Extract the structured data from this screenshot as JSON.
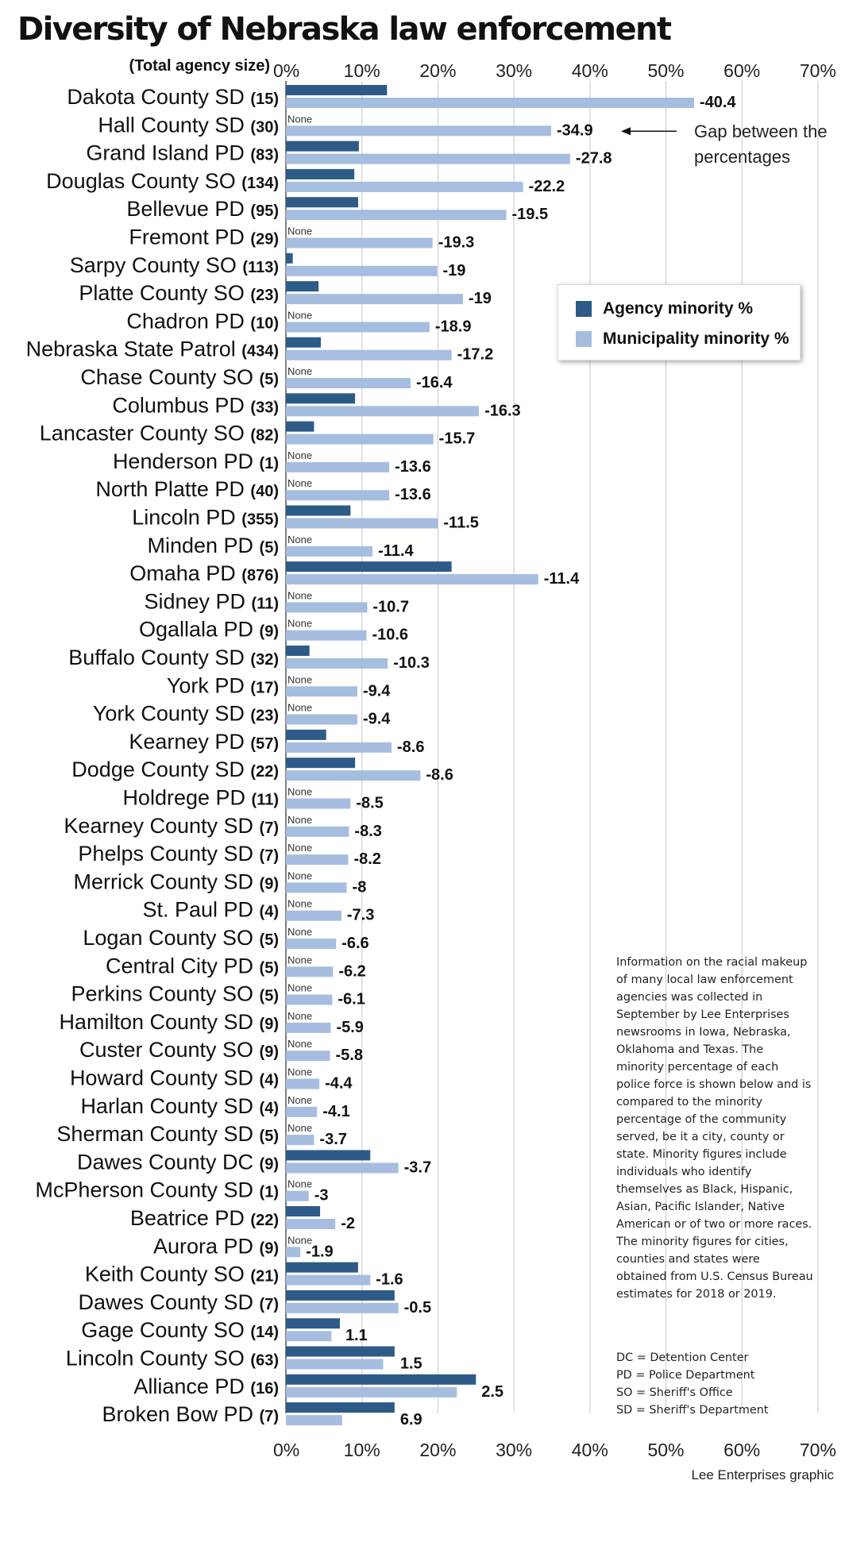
{
  "title": "Diversity of Nebraska law enforcement",
  "size_header": "(Total agency size)",
  "legend": {
    "agency": "Agency minority %",
    "municipality": "Municipality minority %"
  },
  "annotation": "Gap between the percentages",
  "none_label": "None",
  "notes": "Information on the racial makeup of many local law enforcement agencies was collected in September by Lee Enterprises newsrooms in Iowa, Nebraska, Oklahoma and Texas. The minority percentage of each police force is shown below and is compared to the minority percentage of the community served, be it a city, county or state. Minority figures include individuals who identify themselves as Black, Hispanic, Asian, Pacific Islander, Native American or of two or more races. The minority figures for cities, counties and states were obtained from U.S. Census Bureau estimates for 2018 or 2019.",
  "abbreviations": [
    "DC = Detention Center",
    "PD = Police Department",
    "SO = Sheriff's Office",
    "SD = Sheriff's Department"
  ],
  "credit": "Lee Enterprises graphic",
  "colors": {
    "agency": "#2e5a87",
    "municipality": "#a6bde0",
    "grid": "#d0d0d0"
  },
  "chart_data": {
    "type": "bar",
    "orientation": "horizontal",
    "title": "Diversity of Nebraska law enforcement",
    "xlim": [
      0,
      70
    ],
    "xticks": [
      "0%",
      "10%",
      "20%",
      "30%",
      "40%",
      "50%",
      "60%",
      "70%"
    ],
    "grid": true,
    "legend_position": "right",
    "categories": [
      {
        "name": "Dakota County SD",
        "size": "(15)",
        "agency": 13.3,
        "municipality": 53.7,
        "gap": "-40.4"
      },
      {
        "name": "Hall County SD",
        "size": "(30)",
        "agency": 0,
        "municipality": 34.9,
        "gap": "-34.9"
      },
      {
        "name": "Grand Island PD",
        "size": "(83)",
        "agency": 9.6,
        "municipality": 37.4,
        "gap": "-27.8"
      },
      {
        "name": "Douglas County SO",
        "size": "(134)",
        "agency": 9.0,
        "municipality": 31.2,
        "gap": "-22.2"
      },
      {
        "name": "Bellevue PD",
        "size": "(95)",
        "agency": 9.5,
        "municipality": 29.0,
        "gap": "-19.5"
      },
      {
        "name": "Fremont PD",
        "size": "(29)",
        "agency": 0,
        "municipality": 19.3,
        "gap": "-19.3"
      },
      {
        "name": "Sarpy County SO",
        "size": "(113)",
        "agency": 0.9,
        "municipality": 19.9,
        "gap": "-19"
      },
      {
        "name": "Platte County SO",
        "size": "(23)",
        "agency": 4.3,
        "municipality": 23.3,
        "gap": "-19"
      },
      {
        "name": "Chadron PD",
        "size": "(10)",
        "agency": 0,
        "municipality": 18.9,
        "gap": "-18.9"
      },
      {
        "name": "Nebraska State Patrol",
        "size": "(434)",
        "agency": 4.6,
        "municipality": 21.8,
        "gap": "-17.2"
      },
      {
        "name": "Chase County SO",
        "size": "(5)",
        "agency": 0,
        "municipality": 16.4,
        "gap": "-16.4"
      },
      {
        "name": "Columbus PD",
        "size": "(33)",
        "agency": 9.1,
        "municipality": 25.4,
        "gap": "-16.3"
      },
      {
        "name": "Lancaster County SO",
        "size": "(82)",
        "agency": 3.7,
        "municipality": 19.4,
        "gap": "-15.7"
      },
      {
        "name": "Henderson PD",
        "size": "(1)",
        "agency": 0,
        "municipality": 13.6,
        "gap": "-13.6"
      },
      {
        "name": "North Platte PD",
        "size": "(40)",
        "agency": 0,
        "municipality": 13.6,
        "gap": "-13.6"
      },
      {
        "name": "Lincoln PD",
        "size": "(355)",
        "agency": 8.5,
        "municipality": 20.0,
        "gap": "-11.5"
      },
      {
        "name": "Minden PD",
        "size": "(5)",
        "agency": 0,
        "municipality": 11.4,
        "gap": "-11.4"
      },
      {
        "name": "Omaha PD",
        "size": "(876)",
        "agency": 21.8,
        "municipality": 33.2,
        "gap": "-11.4"
      },
      {
        "name": "Sidney PD",
        "size": "(11)",
        "agency": 0,
        "municipality": 10.7,
        "gap": "-10.7"
      },
      {
        "name": "Ogallala PD",
        "size": "(9)",
        "agency": 0,
        "municipality": 10.6,
        "gap": "-10.6"
      },
      {
        "name": "Buffalo County SD",
        "size": "(32)",
        "agency": 3.1,
        "municipality": 13.4,
        "gap": "-10.3"
      },
      {
        "name": "York PD",
        "size": "(17)",
        "agency": 0,
        "municipality": 9.4,
        "gap": "-9.4"
      },
      {
        "name": "York County SD",
        "size": "(23)",
        "agency": 0,
        "municipality": 9.4,
        "gap": "-9.4"
      },
      {
        "name": "Kearney PD",
        "size": "(57)",
        "agency": 5.3,
        "municipality": 13.9,
        "gap": "-8.6"
      },
      {
        "name": "Dodge County SD",
        "size": "(22)",
        "agency": 9.1,
        "municipality": 17.7,
        "gap": "-8.6"
      },
      {
        "name": "Holdrege PD",
        "size": "(11)",
        "agency": 0,
        "municipality": 8.5,
        "gap": "-8.5"
      },
      {
        "name": "Kearney County SD",
        "size": "(7)",
        "agency": 0,
        "municipality": 8.3,
        "gap": "-8.3"
      },
      {
        "name": "Phelps County SD",
        "size": "(7)",
        "agency": 0,
        "municipality": 8.2,
        "gap": "-8.2"
      },
      {
        "name": "Merrick County SD",
        "size": "(9)",
        "agency": 0,
        "municipality": 8.0,
        "gap": "-8"
      },
      {
        "name": "St. Paul PD",
        "size": "(4)",
        "agency": 0,
        "municipality": 7.3,
        "gap": "-7.3"
      },
      {
        "name": "Logan County SO",
        "size": "(5)",
        "agency": 0,
        "municipality": 6.6,
        "gap": "-6.6"
      },
      {
        "name": "Central City PD",
        "size": "(5)",
        "agency": 0,
        "municipality": 6.2,
        "gap": "-6.2"
      },
      {
        "name": "Perkins County SO",
        "size": "(5)",
        "agency": 0,
        "municipality": 6.1,
        "gap": "-6.1"
      },
      {
        "name": "Hamilton County SD",
        "size": "(9)",
        "agency": 0,
        "municipality": 5.9,
        "gap": "-5.9"
      },
      {
        "name": "Custer County SO",
        "size": "(9)",
        "agency": 0,
        "municipality": 5.8,
        "gap": "-5.8"
      },
      {
        "name": "Howard County SD",
        "size": "(4)",
        "agency": 0,
        "municipality": 4.4,
        "gap": "-4.4"
      },
      {
        "name": "Harlan County SD",
        "size": "(4)",
        "agency": 0,
        "municipality": 4.1,
        "gap": "-4.1"
      },
      {
        "name": "Sherman County SD",
        "size": "(5)",
        "agency": 0,
        "municipality": 3.7,
        "gap": "-3.7"
      },
      {
        "name": "Dawes County DC",
        "size": "(9)",
        "agency": 11.1,
        "municipality": 14.8,
        "gap": "-3.7"
      },
      {
        "name": "McPherson County SD",
        "size": "(1)",
        "agency": 0,
        "municipality": 3.0,
        "gap": "-3"
      },
      {
        "name": "Beatrice PD",
        "size": "(22)",
        "agency": 4.5,
        "municipality": 6.5,
        "gap": "-2"
      },
      {
        "name": "Aurora PD",
        "size": "(9)",
        "agency": 0,
        "municipality": 1.9,
        "gap": "-1.9"
      },
      {
        "name": "Keith County SO",
        "size": "(21)",
        "agency": 9.5,
        "municipality": 11.1,
        "gap": "-1.6"
      },
      {
        "name": "Dawes County SD",
        "size": "(7)",
        "agency": 14.3,
        "municipality": 14.8,
        "gap": "-0.5"
      },
      {
        "name": "Gage County SO",
        "size": "(14)",
        "agency": 7.1,
        "municipality": 6.0,
        "gap": "1.1"
      },
      {
        "name": "Lincoln County SO",
        "size": "(63)",
        "agency": 14.3,
        "municipality": 12.8,
        "gap": "1.5"
      },
      {
        "name": "Alliance PD",
        "size": "(16)",
        "agency": 25.0,
        "municipality": 22.5,
        "gap": "2.5"
      },
      {
        "name": "Broken Bow PD",
        "size": "(7)",
        "agency": 14.3,
        "municipality": 7.4,
        "gap": "6.9"
      }
    ]
  }
}
